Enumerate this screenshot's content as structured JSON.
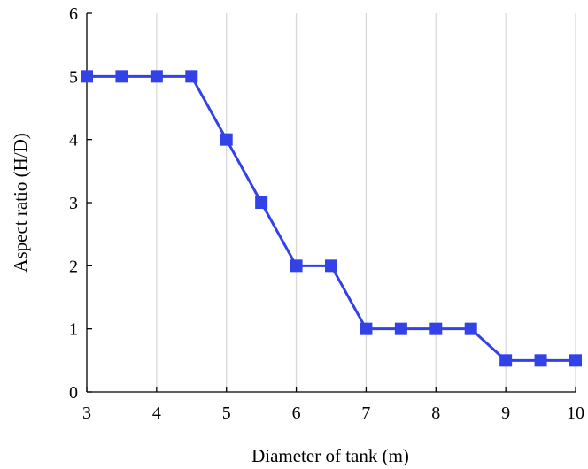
{
  "chart_data": {
    "type": "line",
    "title": "",
    "xlabel": "Diameter of tank (m)",
    "ylabel": "Aspect ratio (H/D)",
    "xlim": [
      3,
      10
    ],
    "ylim": [
      0,
      6
    ],
    "xticks": [
      "3",
      "4",
      "5",
      "6",
      "7",
      "8",
      "9",
      "10"
    ],
    "yticks": [
      "0",
      "1",
      "2",
      "3",
      "4",
      "5",
      "6"
    ],
    "grid": "vertical",
    "legend": "none",
    "marker": "square",
    "series": [
      {
        "color": "#3342e8",
        "x": [
          3,
          3.5,
          4,
          4.5,
          5,
          5.5,
          6,
          6.5,
          7,
          7.5,
          8,
          8.5,
          9,
          9.5,
          10
        ],
        "y": [
          5,
          5,
          5,
          5,
          4,
          3,
          2,
          2,
          1,
          1,
          1,
          1,
          0.5,
          0.5,
          0.5
        ]
      }
    ]
  }
}
